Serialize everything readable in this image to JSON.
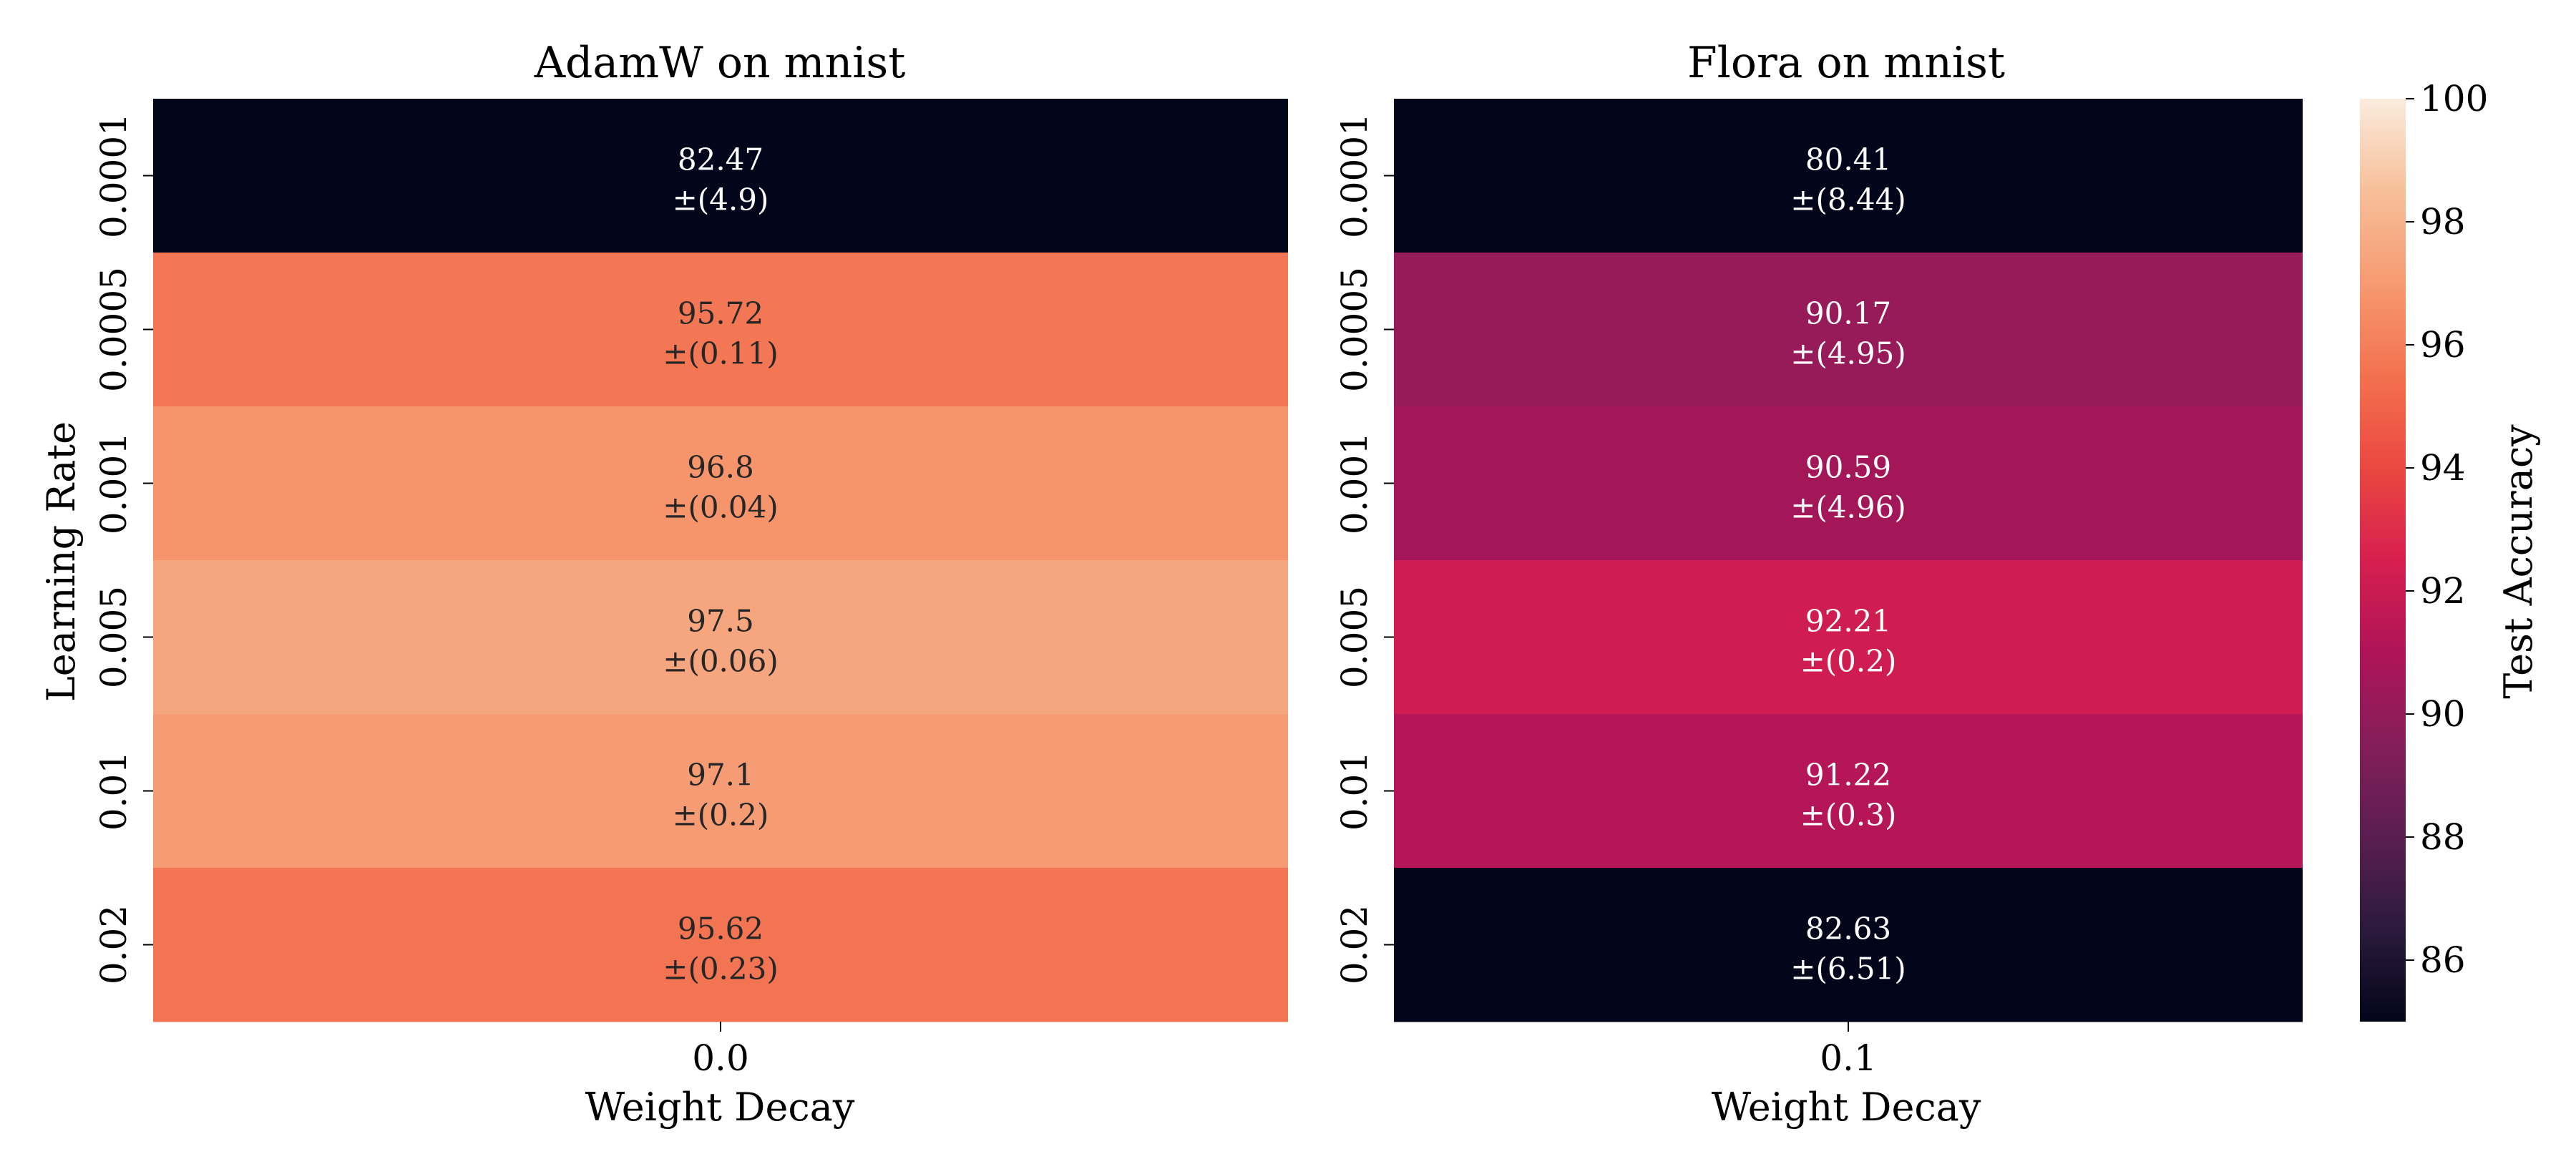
{
  "chart_data": [
    {
      "type": "heatmap",
      "title": "AdamW on mnist",
      "xlabel": "Weight Decay",
      "ylabel": "Learning Rate",
      "x_categories": [
        "0.0"
      ],
      "y_categories": [
        "0.0001",
        "0.0005",
        "0.001",
        "0.005",
        "0.01",
        "0.02"
      ],
      "values": [
        82.47,
        95.72,
        96.8,
        97.5,
        97.1,
        95.62
      ],
      "std_labels": [
        "±(4.9)",
        "±(0.11)",
        "±(0.04)",
        "±(0.06)",
        "±(0.2)",
        "±(0.23)"
      ],
      "value_labels": [
        "82.47",
        "95.72",
        "96.8",
        "97.5",
        "97.1",
        "95.62"
      ]
    },
    {
      "type": "heatmap",
      "title": "Flora on mnist",
      "xlabel": "Weight Decay",
      "ylabel": "",
      "x_categories": [
        "0.1"
      ],
      "y_categories": [
        "0.0001",
        "0.0005",
        "0.001",
        "0.005",
        "0.01",
        "0.02"
      ],
      "values": [
        80.41,
        90.17,
        90.59,
        92.21,
        91.22,
        82.63
      ],
      "std_labels": [
        "±(8.44)",
        "±(4.95)",
        "±(4.96)",
        "±(0.2)",
        "±(0.3)",
        "±(6.51)"
      ],
      "value_labels": [
        "80.41",
        "90.17",
        "90.59",
        "92.21",
        "91.22",
        "82.63"
      ]
    }
  ],
  "colorbar": {
    "label": "Test Accuracy",
    "vmin": 85,
    "vmax": 100,
    "ticks": [
      "86",
      "88",
      "90",
      "92",
      "94",
      "96",
      "98",
      "100"
    ],
    "colormap": "rocket",
    "stops": [
      [
        0.0,
        "#03051a"
      ],
      [
        0.1,
        "#2b1a3c"
      ],
      [
        0.2,
        "#5a1e51"
      ],
      [
        0.3,
        "#841e5a"
      ],
      [
        0.4,
        "#af1458"
      ],
      [
        0.5,
        "#d71f4f"
      ],
      [
        0.6,
        "#ea4840"
      ],
      [
        0.7,
        "#f3714f"
      ],
      [
        0.8,
        "#f69a71"
      ],
      [
        0.9,
        "#f7bf99"
      ],
      [
        1.0,
        "#faebdd"
      ]
    ]
  }
}
